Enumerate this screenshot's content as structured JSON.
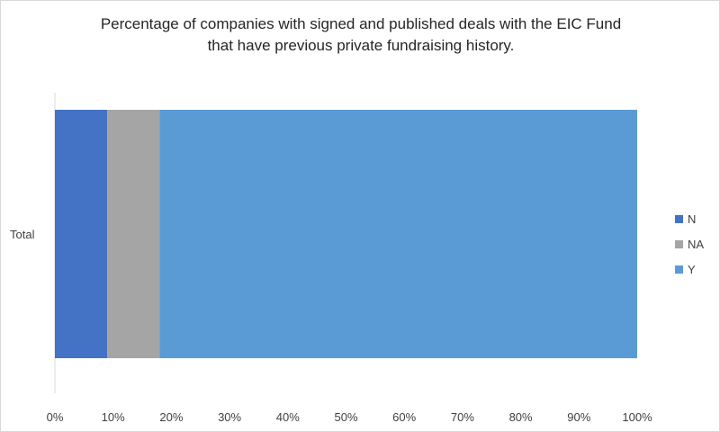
{
  "chart_data": {
    "type": "bar",
    "orientation": "horizontal",
    "stacked": "percent",
    "title_line1": "Percentage of companies with signed and published deals with the EIC Fund",
    "title_line2": "that have previous private fundraising history.",
    "categories": [
      "Total"
    ],
    "series": [
      {
        "name": "N",
        "values": [
          9
        ],
        "color": "#4472c4"
      },
      {
        "name": "NA",
        "values": [
          9
        ],
        "color": "#a5a5a5"
      },
      {
        "name": "Y",
        "values": [
          82
        ],
        "color": "#5b9bd5"
      }
    ],
    "xlim": [
      0,
      100
    ],
    "x_ticks": [
      "0%",
      "10%",
      "20%",
      "30%",
      "40%",
      "50%",
      "60%",
      "70%",
      "80%",
      "90%",
      "100%"
    ],
    "grid": false,
    "legend_position": "right"
  }
}
